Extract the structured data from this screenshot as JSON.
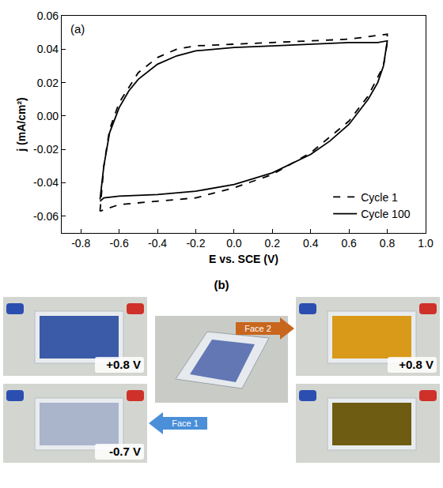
{
  "chart_data": {
    "type": "line",
    "annotation": "(a)",
    "x_label": "E vs. SCE (V)",
    "y_label": "j (mA/cm²)",
    "xlim": [
      -0.9,
      1.0
    ],
    "xticks": [
      -0.8,
      -0.6,
      -0.4,
      -0.2,
      {
        "value": 0,
        "label": "0.0"
      },
      0.2,
      0.4,
      0.6,
      0.8,
      {
        "value": 1,
        "label": "1.0"
      }
    ],
    "ylim": [
      -0.07,
      0.06
    ],
    "yticks": [
      -0.06,
      -0.04,
      -0.02,
      {
        "value": 0,
        "label": "0.00"
      },
      0.02,
      0.04,
      0.06
    ],
    "grid": false,
    "legend": "lower right",
    "series": [
      {
        "name": "Cycle 1",
        "color": "#000000",
        "line_style": "dash",
        "x": [
          -0.7,
          -0.68,
          -0.65,
          -0.6,
          -0.5,
          -0.4,
          -0.3,
          -0.2,
          0,
          0.2,
          0.4,
          0.6,
          0.8,
          0.8,
          0.78,
          0.7,
          0.6,
          0.4,
          0.2,
          0,
          -0.2,
          -0.4,
          -0.6,
          -0.7
        ],
        "values": [
          -0.057,
          -0.03,
          -0.008,
          0.008,
          0.026,
          0.035,
          0.04,
          0.042,
          0.043,
          0.044,
          0.045,
          0.046,
          0.049,
          0.044,
          0.03,
          0.012,
          -0.003,
          -0.022,
          -0.035,
          -0.043,
          -0.049,
          -0.051,
          -0.053,
          -0.057
        ]
      },
      {
        "name": "Cycle 100",
        "color": "#000000",
        "line_style": "solid",
        "x": [
          -0.7,
          -0.68,
          -0.65,
          -0.6,
          -0.55,
          -0.5,
          -0.4,
          -0.3,
          -0.2,
          -0.1,
          0,
          0.2,
          0.4,
          0.6,
          0.75,
          0.8,
          0.78,
          0.75,
          0.7,
          0.6,
          0.5,
          0.4,
          0.2,
          0,
          -0.2,
          -0.4,
          -0.6,
          -0.68,
          -0.7
        ],
        "values": [
          -0.05,
          -0.03,
          -0.01,
          0.005,
          0.015,
          0.022,
          0.031,
          0.036,
          0.039,
          0.04,
          0.041,
          0.042,
          0.043,
          0.044,
          0.044,
          0.045,
          0.03,
          0.02,
          0.01,
          -0.005,
          -0.015,
          -0.023,
          -0.034,
          -0.041,
          -0.045,
          -0.047,
          -0.048,
          -0.049,
          -0.051
        ]
      }
    ]
  },
  "panel_b": {
    "label": "(b)",
    "face_1": {
      "label": "Face 1",
      "photos": [
        {
          "label": "+0.8 V",
          "color": "#3b5ba8"
        },
        {
          "label": "-0.7 V",
          "color": "#aab5cc"
        }
      ]
    },
    "face_2": {
      "label": "Face 2",
      "photos": [
        {
          "label": "+0.8 V",
          "color": "#d99a1a"
        },
        {
          "color": "#6e5c12"
        }
      ]
    }
  }
}
